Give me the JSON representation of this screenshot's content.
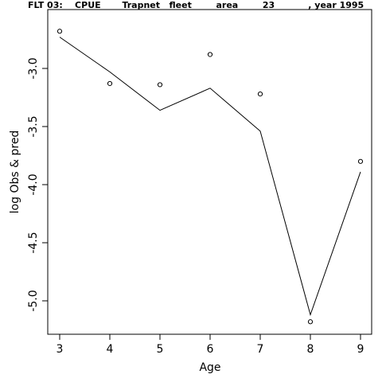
{
  "chart_data": {
    "type": "line",
    "title": "FLT 03:    CPUE       Trapnet   fleet        area        23           , year 1995",
    "xlabel": "Age",
    "ylabel": "log Obs & pred",
    "xlim": [
      3,
      9
    ],
    "ylim": [
      -5.2,
      -2.6
    ],
    "x_ticks": [
      "3",
      "4",
      "5",
      "6",
      "7",
      "8",
      "9"
    ],
    "y_ticks": [
      "-3.0",
      "-3.5",
      "-4.0",
      "-4.5",
      "-5.0"
    ],
    "grid": false,
    "legend": "none",
    "series": [
      {
        "style": "points",
        "x": [
          3,
          4,
          5,
          6,
          7,
          8,
          9
        ],
        "values": [
          -2.68,
          -3.13,
          -3.14,
          -2.88,
          -3.22,
          -5.18,
          -3.8
        ]
      },
      {
        "style": "line",
        "x": [
          3,
          4,
          5,
          6,
          7,
          8,
          9
        ],
        "values": [
          -2.73,
          -3.03,
          -3.36,
          -3.17,
          -3.54,
          -5.12,
          -3.89
        ]
      }
    ]
  }
}
